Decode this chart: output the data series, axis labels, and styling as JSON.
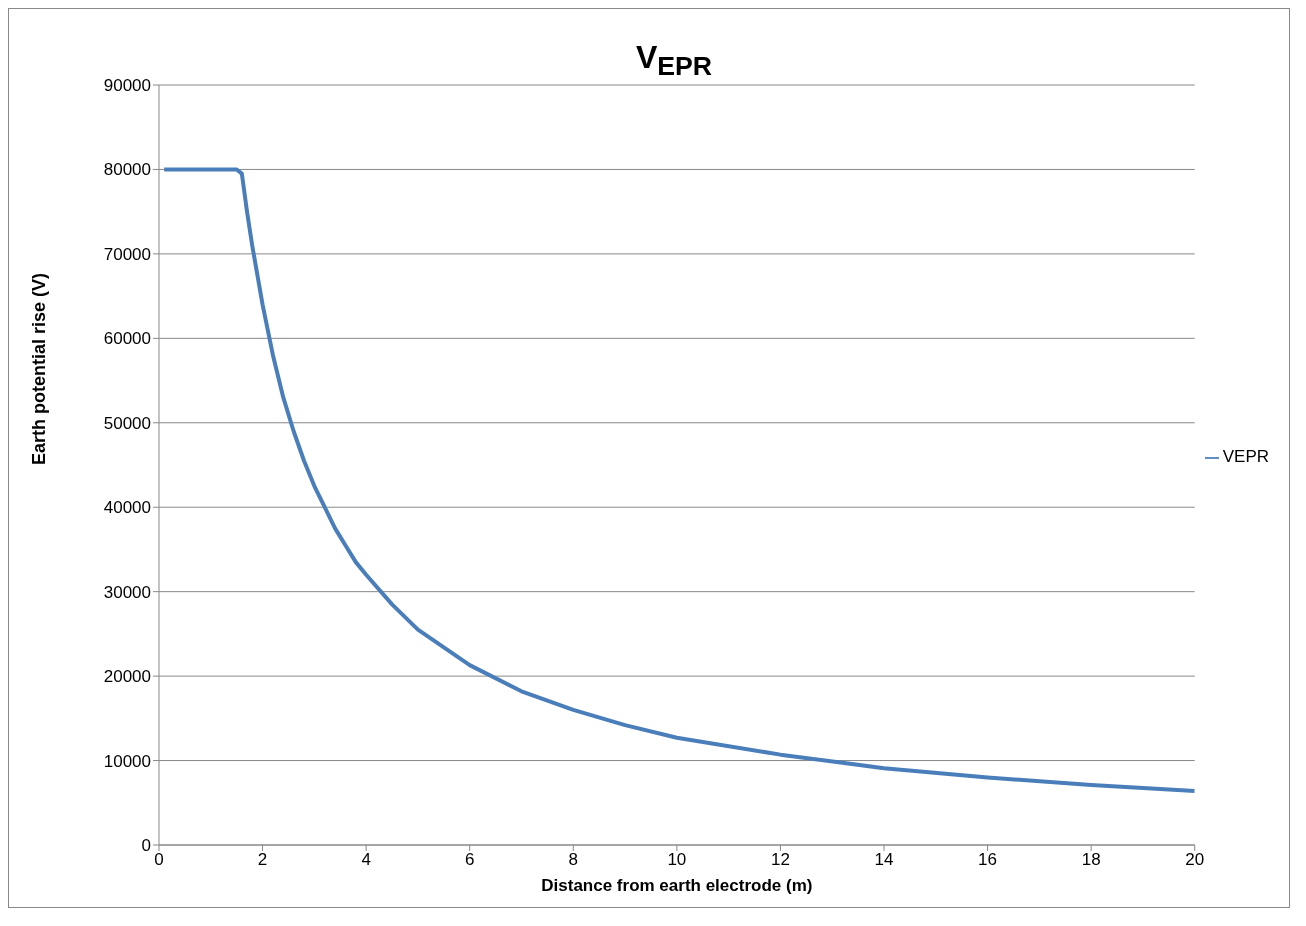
{
  "chart_data": {
    "type": "line",
    "title": "V$_{EPR}$",
    "xlabel": "Distance from earth electrode (m)",
    "ylabel": "Earth potential rise (V)",
    "x": [
      0.1,
      1.5,
      1.6,
      1.7,
      1.8,
      2,
      2.2,
      2.4,
      2.6,
      2.8,
      3,
      3.2,
      3.4,
      3.6,
      3.8,
      4,
      4.5,
      5,
      6,
      7,
      8,
      9,
      10,
      12,
      14,
      16,
      18,
      20
    ],
    "series": [
      {
        "name": "VEPR",
        "color": "#4a7ebb",
        "values": [
          80000,
          80000,
          79500,
          75000,
          71000,
          64000,
          58000,
          53000,
          49000,
          45500,
          42500,
          40000,
          37500,
          35500,
          33500,
          32000,
          28500,
          25500,
          21300,
          18200,
          16000,
          14200,
          12700,
          10700,
          9100,
          8000,
          7100,
          6400
        ]
      }
    ],
    "xlim": [
      0,
      20
    ],
    "xticks": [
      0,
      2,
      4,
      6,
      8,
      10,
      12,
      14,
      16,
      18,
      20
    ],
    "ylim": [
      0,
      90000
    ],
    "yticks": [
      0,
      10000,
      20000,
      30000,
      40000,
      50000,
      60000,
      70000,
      80000,
      90000
    ],
    "grid": "y",
    "legend": "right",
    "marker": "none",
    "line_style": "solid"
  }
}
